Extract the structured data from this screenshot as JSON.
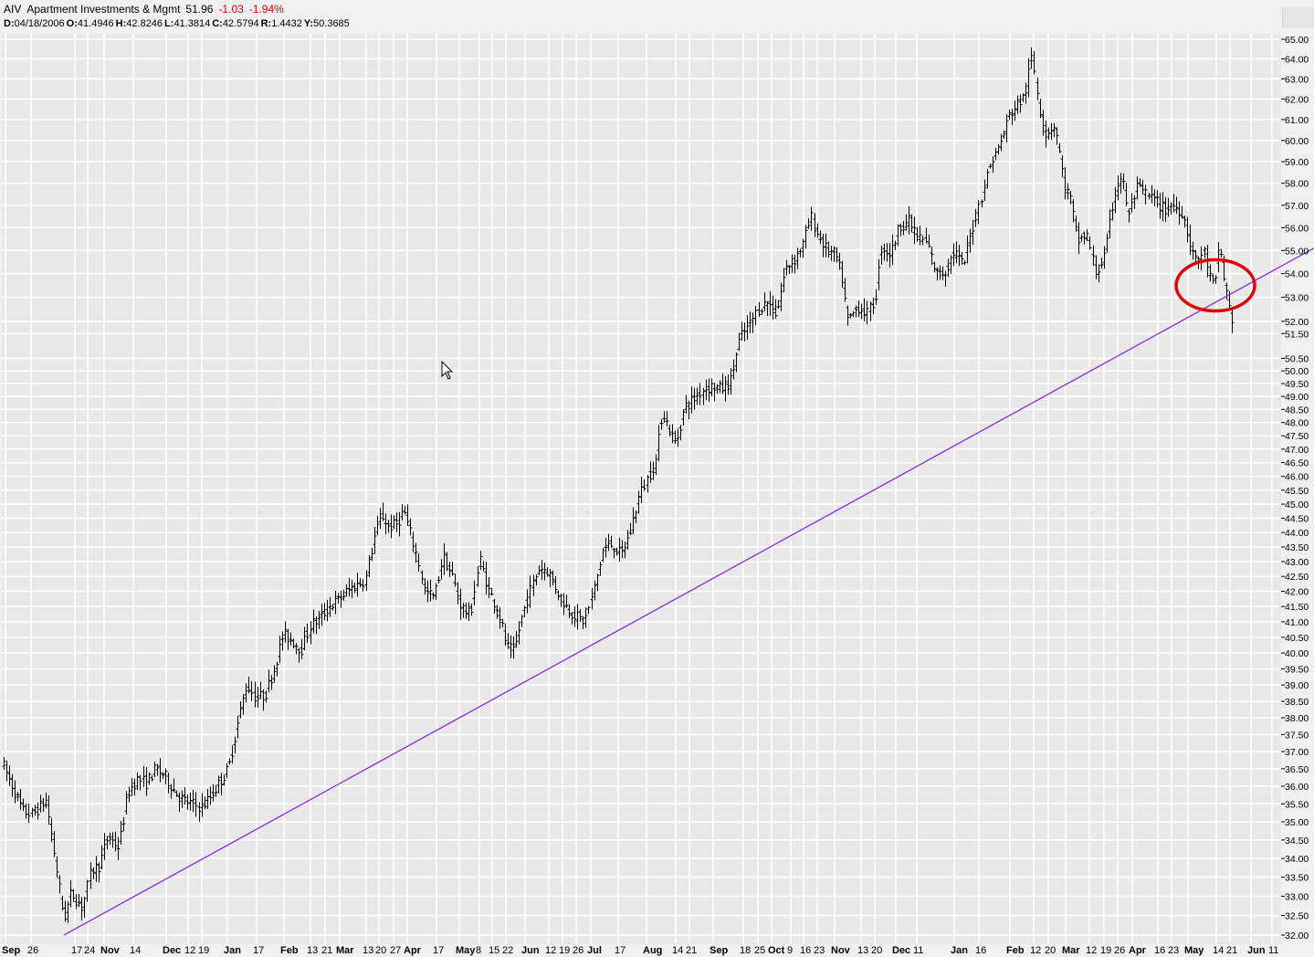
{
  "header": {
    "symbol": "AIV",
    "name": "Apartment Investments & Mgmt",
    "last": "51.96",
    "change": "-1.03",
    "change_pct": "-1.94%",
    "ohlc": [
      {
        "label": "D:",
        "value": "04/18/2006"
      },
      {
        "label": "O:",
        "value": "41.4946"
      },
      {
        "label": "H:",
        "value": "42.8246"
      },
      {
        "label": "L:",
        "value": "41.3814"
      },
      {
        "label": "C:",
        "value": "42.5794"
      },
      {
        "label": "R:",
        "value": "1.4432"
      },
      {
        "label": "Y:",
        "value": "50.3685"
      }
    ]
  },
  "colors": {
    "background": "#e8e8e8",
    "grid": "#ffffff",
    "bars": "#000000",
    "trendline": "#8a2be2",
    "circle": "#e00000",
    "negative": "#e00000"
  },
  "chart_data": {
    "type": "bar",
    "scale": "log",
    "y_ticks": [
      32.0,
      32.5,
      33.0,
      33.5,
      34.0,
      34.5,
      35.0,
      35.5,
      36.0,
      36.5,
      37.0,
      37.5,
      38.0,
      38.5,
      39.0,
      39.5,
      40.0,
      40.5,
      41.0,
      41.5,
      42.0,
      42.5,
      43.0,
      43.5,
      44.0,
      44.5,
      45.0,
      45.5,
      46.0,
      46.5,
      47.0,
      47.5,
      48.0,
      48.5,
      49.0,
      49.5,
      50.0,
      50.5,
      51.5,
      52.0,
      53.0,
      54.0,
      55.0,
      56.0,
      57.0,
      58.0,
      59.0,
      60.0,
      61.0,
      62.0,
      63.0,
      64.0,
      65.0
    ],
    "y_tick_labels": [
      "32.00",
      "32.50",
      "33.00",
      "33.50",
      "34.00",
      "34.50",
      "35.00",
      "35.50",
      "36.00",
      "36.50",
      "37.00",
      "37.50",
      "38.00",
      "38.50",
      "39.00",
      "39.50",
      "40.00",
      "40.50",
      "41.00",
      "41.50",
      "42.00",
      "42.50",
      "43.00",
      "43.50",
      "44.00",
      "44.50",
      "45.00",
      "45.50",
      "46.00",
      "46.50",
      "47.00",
      "47.50",
      "48.00",
      "48.50",
      "49.00",
      "49.50",
      "50.00",
      "50.50",
      "51.50",
      "52.00",
      "53.00",
      "54.00",
      "55.00",
      "56.00",
      "57.00",
      "58.00",
      "59.00",
      "60.00",
      "61.00",
      "62.00",
      "63.00",
      "64.00",
      "65.00"
    ],
    "x_labels": [
      {
        "text": "Sep",
        "bold": true,
        "t": 2
      },
      {
        "text": "26",
        "t": 30
      },
      {
        "text": "17",
        "t": 78
      },
      {
        "text": "24",
        "t": 92
      },
      {
        "text": "Nov",
        "bold": true,
        "t": 110
      },
      {
        "text": "14",
        "t": 142
      },
      {
        "text": "Dec",
        "bold": true,
        "t": 178
      },
      {
        "text": "12",
        "t": 202
      },
      {
        "text": "19",
        "t": 217
      },
      {
        "text": "Jan",
        "bold": true,
        "t": 245
      },
      {
        "text": "17",
        "t": 277
      },
      {
        "text": "Feb",
        "bold": true,
        "t": 307
      },
      {
        "text": "13",
        "t": 336
      },
      {
        "text": "21",
        "t": 352
      },
      {
        "text": "Mar",
        "bold": true,
        "t": 368
      },
      {
        "text": "13",
        "t": 397
      },
      {
        "text": "20",
        "t": 411
      },
      {
        "text": "27",
        "t": 427
      },
      {
        "text": "Apr",
        "bold": true,
        "t": 442
      },
      {
        "text": "17",
        "t": 474
      },
      {
        "text": "May",
        "bold": true,
        "t": 499
      },
      {
        "text": "8",
        "t": 521
      },
      {
        "text": "15",
        "t": 535
      },
      {
        "text": "22",
        "t": 550
      },
      {
        "text": "Jun",
        "bold": true,
        "t": 571
      },
      {
        "text": "12",
        "t": 597
      },
      {
        "text": "19",
        "t": 612
      },
      {
        "text": "26",
        "t": 627
      },
      {
        "text": "Jul",
        "bold": true,
        "t": 643
      },
      {
        "text": "17",
        "t": 673
      },
      {
        "text": "Aug",
        "bold": true,
        "t": 704
      },
      {
        "text": "14",
        "t": 736
      },
      {
        "text": "21",
        "t": 751
      },
      {
        "text": "Sep",
        "bold": true,
        "t": 777
      },
      {
        "text": "18",
        "t": 810
      },
      {
        "text": "25",
        "t": 826
      },
      {
        "text": "Oct",
        "bold": true,
        "t": 841
      },
      {
        "text": "9",
        "t": 862
      },
      {
        "text": "16",
        "t": 876
      },
      {
        "text": "23",
        "t": 891
      },
      {
        "text": "Nov",
        "bold": true,
        "t": 910
      },
      {
        "text": "13",
        "t": 939
      },
      {
        "text": "20",
        "t": 954
      },
      {
        "text": "Dec",
        "bold": true,
        "t": 977
      },
      {
        "text": "11",
        "t": 1000
      },
      {
        "text": "Jan",
        "bold": true,
        "t": 1041
      },
      {
        "text": "16",
        "t": 1068
      },
      {
        "text": "Feb",
        "bold": true,
        "t": 1102
      },
      {
        "text": "12",
        "t": 1128
      },
      {
        "text": "20",
        "t": 1144
      },
      {
        "text": "Mar",
        "bold": true,
        "t": 1163
      },
      {
        "text": "12",
        "t": 1189
      },
      {
        "text": "19",
        "t": 1205
      },
      {
        "text": "26",
        "t": 1220
      },
      {
        "text": "Apr",
        "bold": true,
        "t": 1236
      },
      {
        "text": "16",
        "t": 1264
      },
      {
        "text": "23",
        "t": 1279
      },
      {
        "text": "May",
        "bold": true,
        "t": 1297
      },
      {
        "text": "14",
        "t": 1328
      },
      {
        "text": "21",
        "t": 1343
      },
      {
        "text": "Jun",
        "bold": true,
        "t": 1366
      },
      {
        "text": "11",
        "t": 1389
      }
    ],
    "trendline": {
      "start": {
        "t": 70,
        "price": 32.0
      },
      "end": {
        "t": 1439,
        "price": 55.1
      }
    },
    "highlight_circle": {
      "t": 1331,
      "price": 53.5
    },
    "path": [
      [
        0,
        36.8
      ],
      [
        12,
        36.1
      ],
      [
        25,
        35.3
      ],
      [
        35,
        35.2
      ],
      [
        50,
        35.6
      ],
      [
        60,
        34.0
      ],
      [
        70,
        32.4
      ],
      [
        78,
        33.1
      ],
      [
        90,
        32.7
      ],
      [
        100,
        33.7
      ],
      [
        108,
        33.8
      ],
      [
        118,
        34.6
      ],
      [
        130,
        34.3
      ],
      [
        140,
        35.8
      ],
      [
        150,
        36.2
      ],
      [
        160,
        36.1
      ],
      [
        170,
        36.5
      ],
      [
        180,
        36.3
      ],
      [
        190,
        35.9
      ],
      [
        200,
        35.6
      ],
      [
        210,
        35.5
      ],
      [
        220,
        35.4
      ],
      [
        230,
        35.7
      ],
      [
        240,
        36.1
      ],
      [
        250,
        36.5
      ],
      [
        260,
        37.8
      ],
      [
        270,
        39.0
      ],
      [
        280,
        38.6
      ],
      [
        290,
        38.7
      ],
      [
        300,
        39.5
      ],
      [
        310,
        40.6
      ],
      [
        320,
        40.4
      ],
      [
        330,
        40.1
      ],
      [
        340,
        40.9
      ],
      [
        350,
        41.1
      ],
      [
        360,
        41.5
      ],
      [
        370,
        41.7
      ],
      [
        380,
        42.0
      ],
      [
        390,
        42.2
      ],
      [
        400,
        42.4
      ],
      [
        410,
        43.9
      ],
      [
        418,
        44.6
      ],
      [
        425,
        44.2
      ],
      [
        435,
        44.3
      ],
      [
        442,
        44.8
      ],
      [
        450,
        43.9
      ],
      [
        458,
        43.0
      ],
      [
        465,
        42.0
      ],
      [
        475,
        41.8
      ],
      [
        485,
        43.2
      ],
      [
        495,
        42.5
      ],
      [
        505,
        41.5
      ],
      [
        515,
        41.2
      ],
      [
        525,
        43.1
      ],
      [
        535,
        42.0
      ],
      [
        545,
        41.4
      ],
      [
        555,
        40.2
      ],
      [
        563,
        40.0
      ],
      [
        570,
        41.0
      ],
      [
        580,
        42.0
      ],
      [
        590,
        42.8
      ],
      [
        600,
        42.7
      ],
      [
        610,
        42.0
      ],
      [
        620,
        41.5
      ],
      [
        630,
        41.2
      ],
      [
        640,
        41.0
      ],
      [
        650,
        42.0
      ],
      [
        660,
        43.4
      ],
      [
        670,
        43.6
      ],
      [
        680,
        43.2
      ],
      [
        690,
        44.0
      ],
      [
        700,
        45.3
      ],
      [
        710,
        46.0
      ],
      [
        718,
        46.6
      ],
      [
        725,
        48.5
      ],
      [
        733,
        47.7
      ],
      [
        740,
        47.2
      ],
      [
        750,
        48.6
      ],
      [
        760,
        48.9
      ],
      [
        770,
        49.3
      ],
      [
        780,
        49.4
      ],
      [
        790,
        49.3
      ],
      [
        800,
        49.6
      ],
      [
        810,
        51.3
      ],
      [
        820,
        51.8
      ],
      [
        830,
        52.5
      ],
      [
        840,
        52.8
      ],
      [
        850,
        52.3
      ],
      [
        860,
        54.2
      ],
      [
        870,
        54.6
      ],
      [
        880,
        55.3
      ],
      [
        888,
        56.5
      ],
      [
        895,
        55.7
      ],
      [
        905,
        55.0
      ],
      [
        915,
        54.8
      ],
      [
        922,
        53.8
      ],
      [
        928,
        52.0
      ],
      [
        940,
        52.6
      ],
      [
        950,
        52.3
      ],
      [
        958,
        52.9
      ],
      [
        965,
        55.2
      ],
      [
        975,
        54.8
      ],
      [
        985,
        56.1
      ],
      [
        995,
        56.3
      ],
      [
        1005,
        55.6
      ],
      [
        1015,
        55.3
      ],
      [
        1025,
        54.0
      ],
      [
        1035,
        54.1
      ],
      [
        1045,
        55.0
      ],
      [
        1055,
        54.3
      ],
      [
        1065,
        56.0
      ],
      [
        1075,
        57.5
      ],
      [
        1085,
        59.0
      ],
      [
        1095,
        59.8
      ],
      [
        1105,
        61.2
      ],
      [
        1115,
        61.8
      ],
      [
        1122,
        62.1
      ],
      [
        1130,
        64.2
      ],
      [
        1138,
        61.6
      ],
      [
        1145,
        60.3
      ],
      [
        1155,
        60.8
      ],
      [
        1165,
        58.0
      ],
      [
        1172,
        57.3
      ],
      [
        1180,
        55.4
      ],
      [
        1190,
        55.7
      ],
      [
        1200,
        54.0
      ],
      [
        1210,
        54.8
      ],
      [
        1220,
        57.5
      ],
      [
        1228,
        58.4
      ],
      [
        1236,
        56.5
      ],
      [
        1245,
        57.8
      ],
      [
        1255,
        57.5
      ],
      [
        1265,
        57.2
      ],
      [
        1275,
        56.8
      ],
      [
        1285,
        57.0
      ],
      [
        1295,
        56.7
      ],
      [
        1303,
        55.4
      ],
      [
        1310,
        54.5
      ],
      [
        1318,
        55.0
      ],
      [
        1325,
        53.8
      ],
      [
        1330,
        53.3
      ],
      [
        1335,
        55.5
      ],
      [
        1340,
        53.8
      ],
      [
        1346,
        52.6
      ],
      [
        1350,
        51.96
      ]
    ]
  }
}
